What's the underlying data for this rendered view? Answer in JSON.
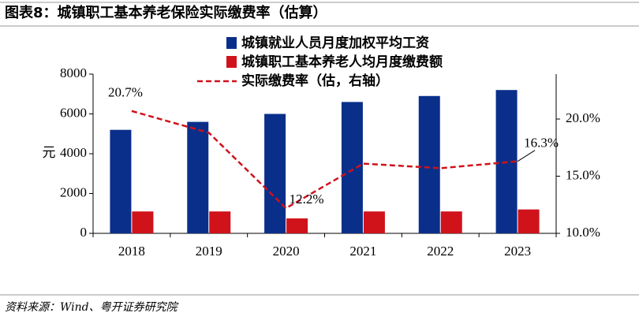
{
  "chart_data": {
    "type": "bar",
    "title": "图表8：城镇职工基本养老保险实际缴费率（估算）",
    "source": "资料来源：Wind、粤开证券研究院",
    "y_label": "元",
    "categories": [
      "2018",
      "2019",
      "2020",
      "2021",
      "2022",
      "2023"
    ],
    "series": [
      {
        "name": "城镇就业人员月度加权平均工资",
        "color": "#0a2f8a",
        "type": "bar",
        "values": [
          5200,
          5600,
          6000,
          6600,
          6900,
          7200
        ]
      },
      {
        "name": "城镇职工基本养老人均月度缴费额",
        "color": "#d0121b",
        "type": "bar",
        "values": [
          1100,
          1100,
          750,
          1100,
          1100,
          1200
        ]
      },
      {
        "name": "实际缴费率（估，右轴）",
        "color": "#d0121b",
        "type": "line",
        "axis": "y2",
        "values": [
          20.7,
          18.8,
          12.2,
          16.1,
          15.7,
          16.3
        ],
        "value_labels": [
          "20.7%",
          null,
          "12.2%",
          null,
          null,
          "16.3%"
        ]
      }
    ],
    "ylim": [
      0,
      8000
    ],
    "yticks": [
      0,
      2000,
      4000,
      6000,
      8000
    ],
    "y2lim": [
      10,
      23.93
    ],
    "y2ticks": [
      {
        "value": 10,
        "label": "10.0%"
      },
      {
        "value": 15,
        "label": "15.0%"
      },
      {
        "value": 20,
        "label": "20.0%"
      }
    ],
    "legend": "top"
  }
}
